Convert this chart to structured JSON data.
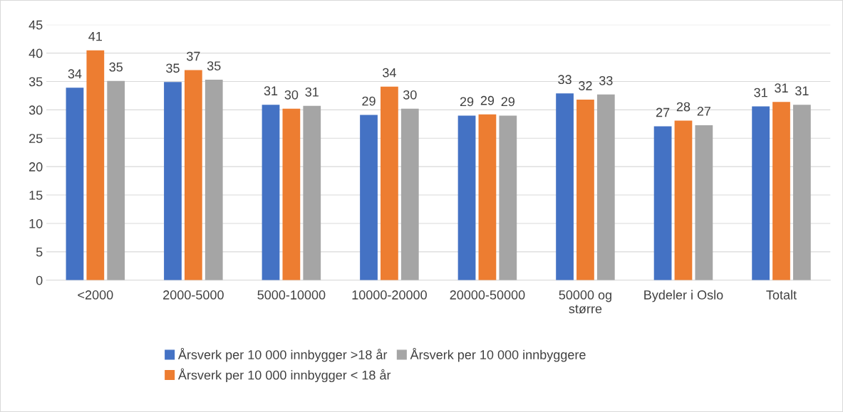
{
  "chart_data": {
    "type": "bar",
    "categories": [
      "<2000",
      "2000-5000",
      "5000-10000",
      "10000-20000",
      "20000-50000",
      "50000 og\nstørre",
      "Bydeler i Oslo",
      "Totalt"
    ],
    "series": [
      {
        "name": "Årsverk per 10 000 innbygger >18 år",
        "color": "#4472c4",
        "values": [
          33.9,
          34.9,
          30.9,
          29.1,
          29.0,
          32.9,
          27.1,
          30.6
        ],
        "value_labels": [
          "34",
          "35",
          "31",
          "29",
          "29",
          "33",
          "27",
          "31"
        ]
      },
      {
        "name": "Årsverk per 10 000 innbygger < 18 år",
        "color": "#ed7d31",
        "values": [
          40.5,
          37.0,
          30.2,
          34.1,
          29.2,
          31.8,
          28.1,
          31.4
        ],
        "value_labels": [
          "41",
          "37",
          "30",
          "34",
          "29",
          "32",
          "28",
          "31"
        ]
      },
      {
        "name": "Årsverk per 10 000 innbyggere",
        "color": "#a5a5a5",
        "values": [
          35.1,
          35.3,
          30.7,
          30.2,
          29.0,
          32.7,
          27.3,
          30.9
        ],
        "value_labels": [
          "35",
          "35",
          "31",
          "30",
          "29",
          "33",
          "27",
          "31"
        ]
      }
    ],
    "ylim": [
      0,
      45
    ],
    "yticks": [
      0,
      5,
      10,
      15,
      20,
      25,
      30,
      35,
      40,
      45
    ],
    "grid": "y",
    "legend": "bottom"
  }
}
